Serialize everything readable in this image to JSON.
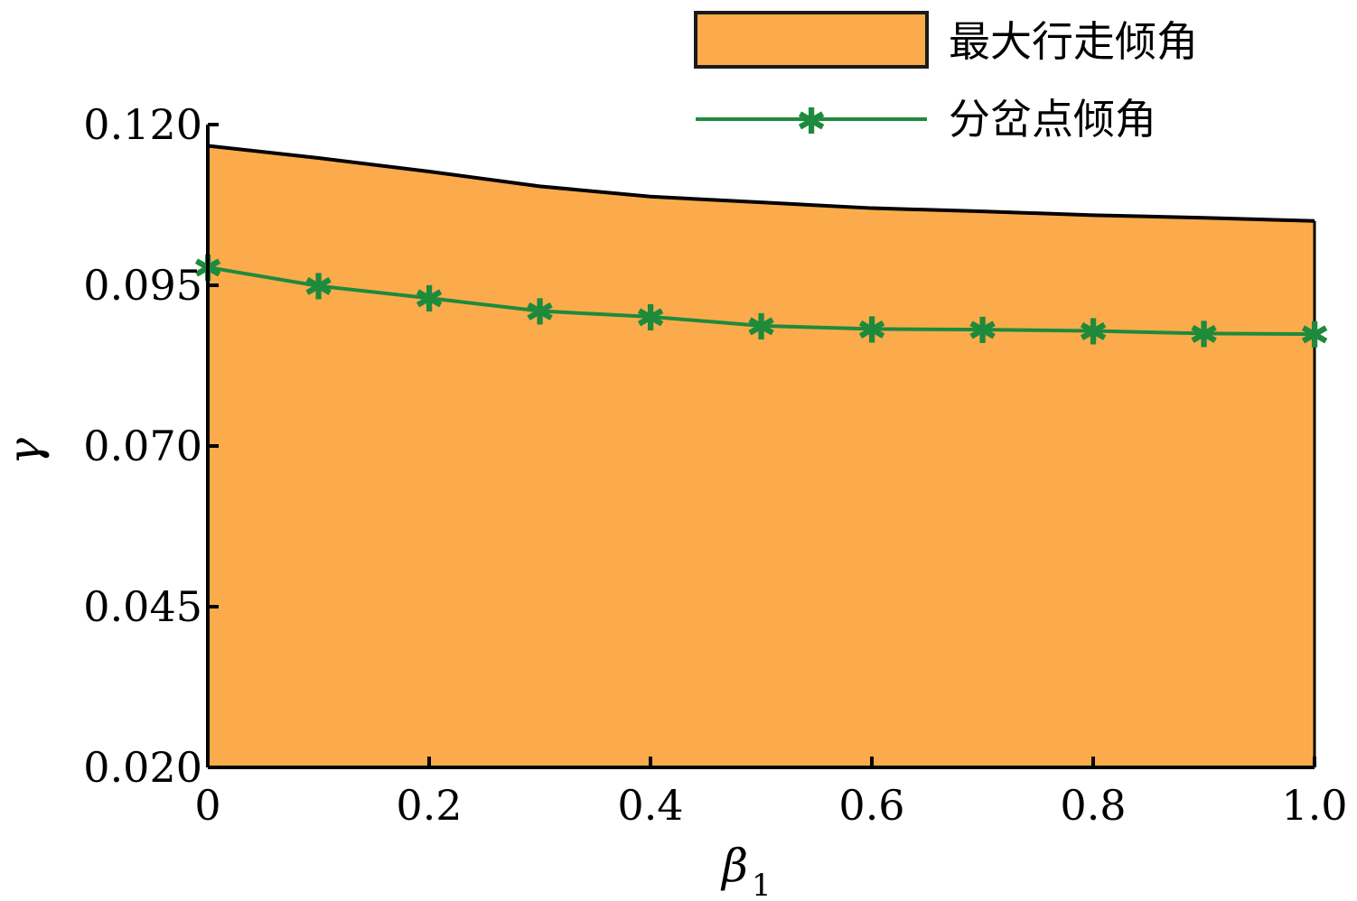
{
  "chart_data": {
    "type": "area",
    "xlabel": "β",
    "xlabel_subscript": "1",
    "ylabel": "γ",
    "xlim": [
      0,
      1.0
    ],
    "ylim": [
      0.02,
      0.12
    ],
    "x_ticks": [
      0,
      0.2,
      0.4,
      0.6,
      0.8,
      1.0
    ],
    "x_tick_labels": [
      "0",
      "0.2",
      "0.4",
      "0.6",
      "0.8",
      "1.0"
    ],
    "y_ticks": [
      0.02,
      0.045,
      0.07,
      0.095,
      0.12
    ],
    "y_tick_labels": [
      "0.020",
      "0.045",
      "0.070",
      "0.095",
      "0.120"
    ],
    "grid": false,
    "legend_position": "top-right",
    "x": [
      0,
      0.1,
      0.2,
      0.3,
      0.4,
      0.5,
      0.6,
      0.7,
      0.8,
      0.9,
      1.0
    ],
    "series": [
      {
        "name": "最大行走倾角",
        "kind": "area",
        "color": "#fbab4b",
        "edge_color": "#000000",
        "values": [
          0.1167,
          0.1148,
          0.1127,
          0.1104,
          0.1088,
          0.1079,
          0.107,
          0.1065,
          0.1059,
          0.1055,
          0.105
        ]
      },
      {
        "name": "分岔点倾角",
        "kind": "line",
        "marker": "asterisk",
        "color": "#1e8a3c",
        "values": [
          0.0978,
          0.0949,
          0.093,
          0.091,
          0.0901,
          0.0887,
          0.0882,
          0.0881,
          0.0879,
          0.0875,
          0.0874
        ]
      }
    ]
  }
}
